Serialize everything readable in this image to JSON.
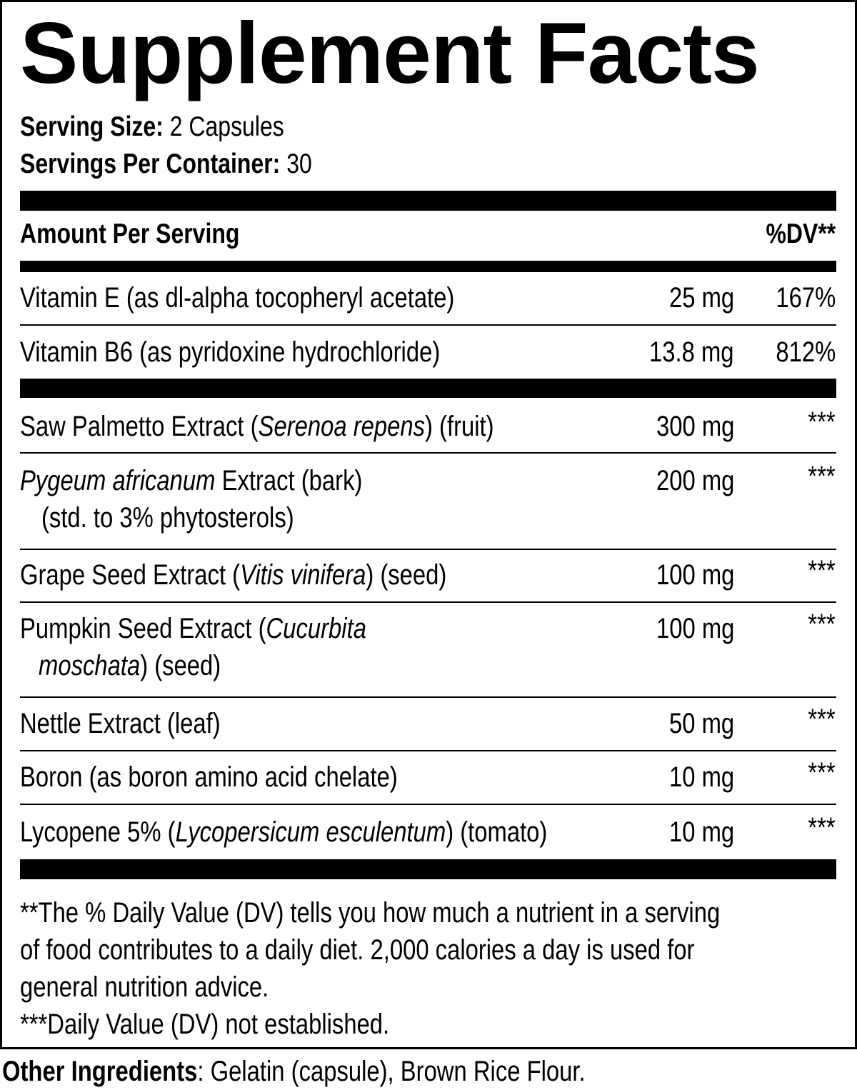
{
  "title": "Supplement Facts",
  "serving_size": {
    "label": "Serving Size:",
    "value": "2 Capsules"
  },
  "servings_per_container": {
    "label": "Servings Per Container:",
    "value": "30"
  },
  "header": {
    "amount_per_serving": "Amount Per Serving",
    "dv": "%DV**"
  },
  "vitamins": [
    {
      "name": [
        {
          "t": "Vitamin E (as dl-alpha tocopheryl acetate)"
        }
      ],
      "amount": "25 mg",
      "dv": "167%"
    },
    {
      "name": [
        {
          "t": "Vitamin B6 (as pyridoxine hydrochloride)"
        }
      ],
      "amount": "13.8 mg",
      "dv": "812%"
    }
  ],
  "ingredients": [
    {
      "name": [
        {
          "t": "Saw Palmetto Extract ("
        },
        {
          "t": "Serenoa repens",
          "i": true
        },
        {
          "t": ") (fruit)"
        }
      ],
      "amount": "300 mg",
      "dv": "***"
    },
    {
      "name": [
        {
          "t": "Pygeum africanum",
          "i": true
        },
        {
          "t": " Extract (bark)"
        }
      ],
      "line2": [
        {
          "t": "(std. to 3% phytosterols)"
        }
      ],
      "amount": "200 mg",
      "dv": "***"
    },
    {
      "name": [
        {
          "t": "Grape Seed Extract ("
        },
        {
          "t": "Vitis vinifera",
          "i": true
        },
        {
          "t": ") (seed)"
        }
      ],
      "amount": "100 mg",
      "dv": "***"
    },
    {
      "name": [
        {
          "t": "Pumpkin Seed Extract ("
        },
        {
          "t": "Cucurbita",
          "i": true
        }
      ],
      "line2": [
        {
          "t": "moschata",
          "i": true
        },
        {
          "t": ") (seed)"
        }
      ],
      "amount": "100 mg",
      "dv": "***"
    },
    {
      "name": [
        {
          "t": "Nettle Extract (leaf)"
        }
      ],
      "amount": "50 mg",
      "dv": "***"
    },
    {
      "name": [
        {
          "t": "Boron (as boron amino acid chelate)"
        }
      ],
      "amount": "10 mg",
      "dv": "***"
    },
    {
      "name": [
        {
          "t": "Lycopene 5% ("
        },
        {
          "t": "Lycopersicum esculentum",
          "i": true
        },
        {
          "t": ") (tomato)"
        }
      ],
      "amount": "10 mg",
      "dv": "***"
    }
  ],
  "footnotes": [
    "**The % Daily Value (DV) tells you how much a nutrient in a serving",
    "of food contributes to a daily diet. 2,000 calories a day is used for",
    "general nutrition advice.",
    "***Daily Value (DV) not established."
  ],
  "other_ingredients": {
    "label": "Other Ingredients",
    "value": ": Gelatin (capsule), Brown Rice Flour."
  }
}
